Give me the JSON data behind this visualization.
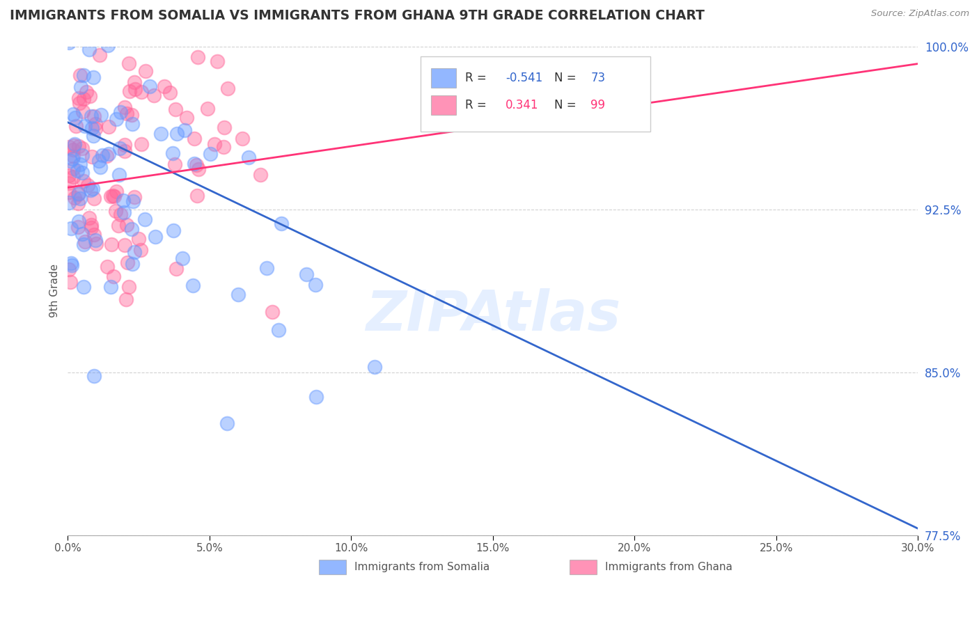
{
  "title": "IMMIGRANTS FROM SOMALIA VS IMMIGRANTS FROM GHANA 9TH GRADE CORRELATION CHART",
  "source_text": "Source: ZipAtlas.com",
  "ylabel_label": "9th Grade",
  "xlim": [
    0.0,
    30.0
  ],
  "ylim": [
    77.5,
    100.0
  ],
  "yticks": [
    77.5,
    85.0,
    92.5,
    100.0
  ],
  "xticks": [
    0.0,
    5.0,
    10.0,
    15.0,
    20.0,
    25.0,
    30.0
  ],
  "legend_somalia": "Immigrants from Somalia",
  "legend_ghana": "Immigrants from Ghana",
  "r_somalia": -0.541,
  "n_somalia": 73,
  "r_ghana": 0.341,
  "n_ghana": 99,
  "somalia_color": "#6699ff",
  "ghana_color": "#ff6699",
  "somalia_line_color": "#3366cc",
  "ghana_line_color": "#ff3377",
  "watermark": "ZIPAtlas",
  "background_color": "#ffffff",
  "grid_color": "#cccccc",
  "seed": 42,
  "som_line_y0": 96.5,
  "som_line_y1": 77.8,
  "gha_line_y0": 93.5,
  "gha_line_y1": 99.2
}
